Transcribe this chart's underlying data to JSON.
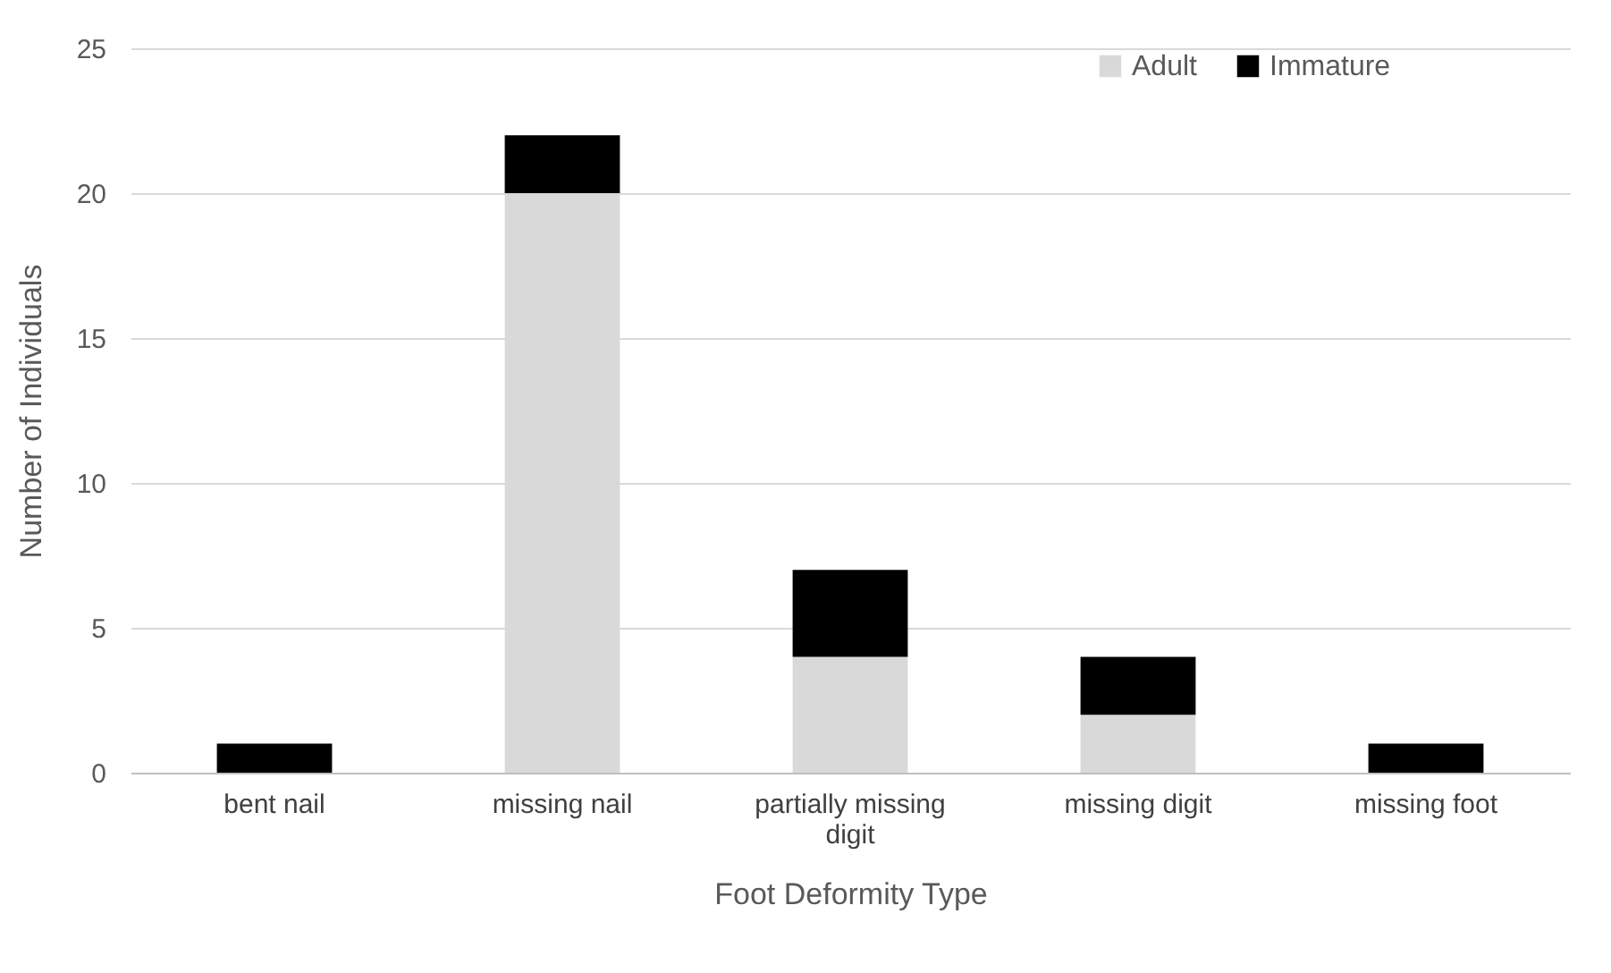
{
  "chart_data": {
    "type": "bar",
    "stacked": true,
    "xlabel": "Foot Deformity Type",
    "ylabel": "Number of Individuals",
    "categories": [
      "bent nail",
      "missing nail",
      "partially missing digit",
      "missing digit",
      "missing foot"
    ],
    "series": [
      {
        "name": "Adult",
        "color": "#d9d9d9",
        "values": [
          0,
          20,
          4,
          2,
          0
        ]
      },
      {
        "name": "Immature",
        "color": "#000000",
        "values": [
          1,
          2,
          3,
          2,
          1
        ]
      }
    ],
    "ylim": [
      0,
      25
    ],
    "yticks": [
      0,
      5,
      10,
      15,
      20,
      25
    ],
    "grid": "y",
    "legend": "top right"
  }
}
